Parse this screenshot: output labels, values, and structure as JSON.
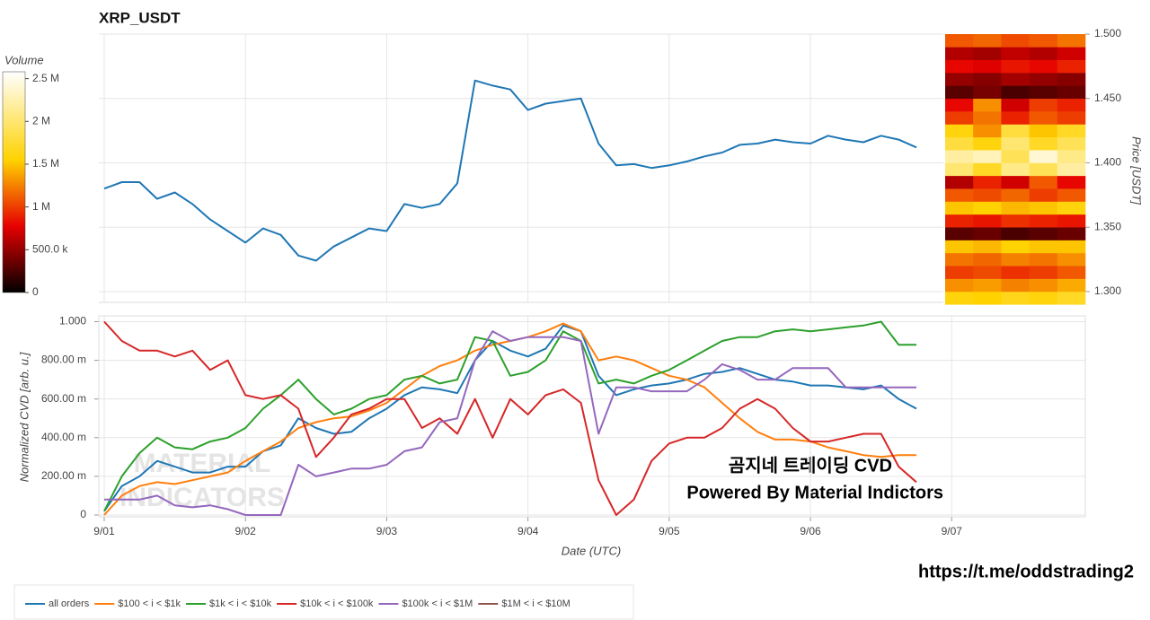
{
  "chart_data": [
    {
      "type": "line",
      "title": "XRP_USDT",
      "y_label": "Price [USDT]",
      "x": [
        1,
        1.125,
        1.25,
        1.375,
        1.5,
        1.625,
        1.75,
        1.875,
        2,
        2.125,
        2.25,
        2.375,
        2.5,
        2.625,
        2.75,
        2.875,
        3,
        3.125,
        3.25,
        3.375,
        3.5,
        3.625,
        3.75,
        3.875,
        4,
        4.125,
        4.25,
        4.375,
        4.5,
        4.625,
        4.75,
        4.875,
        5,
        5.125,
        5.25,
        5.375,
        5.5,
        5.625,
        5.75,
        5.875,
        6,
        6.125,
        6.25,
        6.375,
        6.5,
        6.625,
        6.75
      ],
      "xlim": [
        0.962,
        7.946
      ],
      "series": [
        {
          "color": "#1f77b4",
          "values": [
            1.38,
            1.385,
            1.385,
            1.372,
            1.377,
            1.368,
            1.356,
            1.347,
            1.338,
            1.349,
            1.344,
            1.328,
            1.324,
            1.335,
            1.342,
            1.349,
            1.347,
            1.368,
            1.365,
            1.368,
            1.384,
            1.464,
            1.46,
            1.457,
            1.441,
            1.446,
            1.448,
            1.45,
            1.415,
            1.398,
            1.399,
            1.396,
            1.398,
            1.401,
            1.405,
            1.408,
            1.414,
            1.415,
            1.418,
            1.416,
            1.415,
            1.421,
            1.418,
            1.416,
            1.421,
            1.418,
            1.412
          ]
        }
      ],
      "ylim": [
        1.2916,
        1.5
      ],
      "yticks": [
        {
          "value": 1.3,
          "label": "1.300"
        },
        {
          "value": 1.35,
          "label": "1.350"
        },
        {
          "value": 1.4,
          "label": "1.400"
        },
        {
          "value": 1.45,
          "label": "1.450"
        },
        {
          "value": 1.5,
          "label": "1.500"
        }
      ],
      "grid": true
    },
    {
      "type": "line",
      "y_label": "Normalized CVD [arb. u.]",
      "x_label": "Date (UTC)",
      "x": [
        1,
        1.125,
        1.25,
        1.375,
        1.5,
        1.625,
        1.75,
        1.875,
        2,
        2.125,
        2.25,
        2.375,
        2.5,
        2.625,
        2.75,
        2.875,
        3,
        3.125,
        3.25,
        3.375,
        3.5,
        3.625,
        3.75,
        3.875,
        4,
        4.125,
        4.25,
        4.375,
        4.5,
        4.625,
        4.75,
        4.875,
        5,
        5.125,
        5.25,
        5.375,
        5.5,
        5.625,
        5.75,
        5.875,
        6,
        6.125,
        6.25,
        6.375,
        6.5,
        6.625,
        6.75
      ],
      "xlim": [
        0.962,
        7.946
      ],
      "xticks": [
        {
          "value": 1,
          "label": "9/01"
        },
        {
          "value": 2,
          "label": "9/02"
        },
        {
          "value": 3,
          "label": "9/03"
        },
        {
          "value": 4,
          "label": "9/04"
        },
        {
          "value": 5,
          "label": "9/05"
        },
        {
          "value": 6,
          "label": "9/06"
        },
        {
          "value": 7,
          "label": "9/07"
        }
      ],
      "ylim": [
        0,
        1.03
      ],
      "yticks": [
        0,
        {
          "value": 0.2,
          "label": "200.00 m"
        },
        {
          "value": 0.4,
          "label": "400.00 m"
        },
        {
          "value": 0.6,
          "label": "600.00 m"
        },
        {
          "value": 0.8,
          "label": "800.00 m"
        },
        {
          "value": 1,
          "label": "1.000"
        }
      ],
      "grid": true,
      "legend": "bottom",
      "series": [
        {
          "name": "all orders",
          "color": "#1f77b4",
          "values": [
            0.02,
            0.15,
            0.2,
            0.28,
            0.25,
            0.22,
            0.22,
            0.25,
            0.25,
            0.33,
            0.36,
            0.5,
            0.45,
            0.42,
            0.43,
            0.5,
            0.55,
            0.62,
            0.66,
            0.65,
            0.63,
            0.8,
            0.9,
            0.85,
            0.82,
            0.86,
            0.98,
            0.95,
            0.72,
            0.62,
            0.65,
            0.67,
            0.68,
            0.7,
            0.73,
            0.74,
            0.76,
            0.73,
            0.7,
            0.69,
            0.67,
            0.67,
            0.66,
            0.65,
            0.67,
            0.6,
            0.55
          ]
        },
        {
          "name": "$100 < i < $1k",
          "color": "#ff7f0e",
          "values": [
            0,
            0.1,
            0.15,
            0.17,
            0.16,
            0.18,
            0.2,
            0.22,
            0.28,
            0.33,
            0.38,
            0.45,
            0.48,
            0.5,
            0.51,
            0.54,
            0.58,
            0.65,
            0.72,
            0.77,
            0.8,
            0.85,
            0.88,
            0.9,
            0.92,
            0.95,
            0.99,
            0.95,
            0.8,
            0.82,
            0.8,
            0.76,
            0.72,
            0.7,
            0.66,
            0.58,
            0.5,
            0.43,
            0.39,
            0.39,
            0.38,
            0.35,
            0.33,
            0.31,
            0.3,
            0.31,
            0.31
          ]
        },
        {
          "name": "$1k < i < $10k",
          "color": "#2ca02c",
          "values": [
            0.02,
            0.2,
            0.32,
            0.4,
            0.35,
            0.34,
            0.38,
            0.4,
            0.45,
            0.55,
            0.62,
            0.7,
            0.6,
            0.52,
            0.55,
            0.6,
            0.62,
            0.7,
            0.72,
            0.68,
            0.7,
            0.92,
            0.9,
            0.72,
            0.74,
            0.8,
            0.95,
            0.9,
            0.68,
            0.7,
            0.68,
            0.72,
            0.75,
            0.8,
            0.85,
            0.9,
            0.92,
            0.92,
            0.95,
            0.96,
            0.95,
            0.96,
            0.97,
            0.98,
            1.0,
            0.88,
            0.88
          ]
        },
        {
          "name": "$10k < i < $100k",
          "color": "#d62728",
          "values": [
            1.0,
            0.9,
            0.85,
            0.85,
            0.82,
            0.85,
            0.75,
            0.8,
            0.62,
            0.6,
            0.62,
            0.55,
            0.3,
            0.4,
            0.52,
            0.55,
            0.6,
            0.6,
            0.45,
            0.5,
            0.42,
            0.6,
            0.4,
            0.6,
            0.52,
            0.62,
            0.65,
            0.58,
            0.18,
            0.0,
            0.08,
            0.28,
            0.37,
            0.4,
            0.4,
            0.45,
            0.55,
            0.6,
            0.55,
            0.45,
            0.38,
            0.38,
            0.4,
            0.42,
            0.42,
            0.25,
            0.17
          ]
        },
        {
          "name": "$100k < i < $1M",
          "color": "#9467bd",
          "values": [
            0.08,
            0.08,
            0.08,
            0.1,
            0.05,
            0.04,
            0.05,
            0.03,
            0.0,
            0.0,
            0.0,
            0.26,
            0.2,
            0.22,
            0.24,
            0.24,
            0.26,
            0.33,
            0.35,
            0.48,
            0.5,
            0.8,
            0.95,
            0.9,
            0.92,
            0.92,
            0.92,
            0.9,
            0.42,
            0.66,
            0.66,
            0.64,
            0.64,
            0.64,
            0.7,
            0.78,
            0.75,
            0.7,
            0.7,
            0.76,
            0.76,
            0.76,
            0.66,
            0.66,
            0.66,
            0.66,
            0.66
          ]
        },
        {
          "name": "$1M < i < $10M",
          "color": "#8c564b",
          "values": [
            null,
            null,
            null,
            null,
            null,
            null,
            null,
            null,
            null,
            null,
            null,
            null,
            null,
            null,
            null,
            null,
            null,
            null,
            null,
            null,
            null,
            null,
            null,
            null,
            null,
            null,
            null,
            null,
            null,
            null,
            null,
            null,
            null,
            null,
            null,
            null,
            null,
            null,
            null,
            null,
            null,
            null,
            null,
            null,
            null,
            null,
            null
          ]
        }
      ]
    },
    {
      "type": "heatmap",
      "colorbar_title": "Volume",
      "ybins": [
        1.29,
        1.3,
        1.31,
        1.32,
        1.33,
        1.34,
        1.35,
        1.36,
        1.37,
        1.38,
        1.39,
        1.4,
        1.41,
        1.42,
        1.43,
        1.44,
        1.45,
        1.46,
        1.47,
        1.48,
        1.49,
        1.5
      ],
      "z": [
        [
          1600000,
          1550000,
          1650000,
          1600000,
          1700000
        ],
        [
          1300000,
          1350000,
          1250000,
          1300000,
          1400000
        ],
        [
          1000000,
          1050000,
          950000,
          1000000,
          1100000
        ],
        [
          1200000,
          1150000,
          1250000,
          1200000,
          1300000
        ],
        [
          1500000,
          1450000,
          1550000,
          1500000,
          1500000
        ],
        [
          300000,
          350000,
          250000,
          300000,
          350000
        ],
        [
          900000,
          850000,
          950000,
          900000,
          850000
        ],
        [
          1500000,
          1550000,
          1450000,
          1500000,
          1600000
        ],
        [
          1100000,
          1050000,
          1150000,
          1000000,
          1100000
        ],
        [
          600000,
          900000,
          700000,
          1100000,
          800000
        ],
        [
          2000000,
          1700000,
          2100000,
          1900000,
          2200000
        ],
        [
          2200000,
          2300000,
          1900000,
          2400000,
          2100000
        ],
        [
          1800000,
          1600000,
          2000000,
          1700000,
          1900000
        ],
        [
          1600000,
          1300000,
          1800000,
          1500000,
          1700000
        ],
        [
          1000000,
          1200000,
          900000,
          1100000,
          1000000
        ],
        [
          800000,
          1300000,
          700000,
          1000000,
          900000
        ],
        [
          300000,
          400000,
          250000,
          300000,
          350000
        ],
        [
          500000,
          450000,
          550000,
          500000,
          450000
        ],
        [
          800000,
          750000,
          850000,
          800000,
          900000
        ],
        [
          600000,
          550000,
          650000,
          600000,
          700000
        ],
        [
          1100000,
          1150000,
          1050000,
          1100000,
          1200000
        ]
      ],
      "zlim": [
        0,
        2580000
      ],
      "zticks": [
        0,
        {
          "value": 500000,
          "label": "500.0 k"
        },
        {
          "value": 1000000,
          "label": "1 M"
        },
        {
          "value": 1500000,
          "label": "1.5 M"
        },
        {
          "value": 2000000,
          "label": "2 M"
        },
        {
          "value": 2500000,
          "label": "2.5 M"
        }
      ],
      "colorscale": [
        [
          0,
          "#000000"
        ],
        [
          0.3,
          "#e60000"
        ],
        [
          0.6,
          "#ffd200"
        ],
        [
          1,
          "#ffffff"
        ]
      ]
    }
  ],
  "annotations": [
    "곰지네 트레이딩 CVD",
    "Powered By Material Indictors"
  ],
  "watermark": [
    "MATERIAL",
    "INDICATORS"
  ],
  "footer": "https://t.me/oddstrading2"
}
